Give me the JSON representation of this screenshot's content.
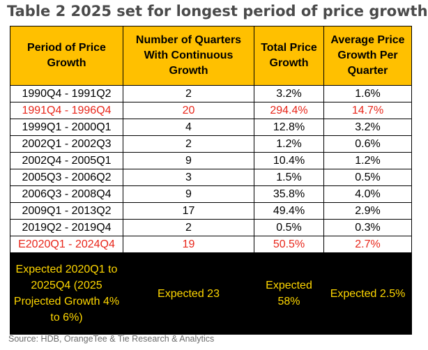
{
  "title": "Table 2 2025 set for longest period of price growth",
  "table": {
    "headers": [
      "Period of Price Growth",
      "Number of Quarters With Continuous Growth",
      "Total Price Growth",
      "Average Price Growth Per Quarter"
    ],
    "rows": [
      {
        "period": "1990Q4 - 1991Q2",
        "quarters": "2",
        "total": "3.2%",
        "average": "1.6%",
        "highlight": false
      },
      {
        "period": "1991Q4 - 1996Q4",
        "quarters": "20",
        "total": "294.4%",
        "average": "14.7%",
        "highlight": true
      },
      {
        "period": "1999Q1 - 2000Q1",
        "quarters": "4",
        "total": "12.8%",
        "average": "3.2%",
        "highlight": false
      },
      {
        "period": "2002Q1 - 2002Q3",
        "quarters": "2",
        "total": "1.2%",
        "average": "0.6%",
        "highlight": false
      },
      {
        "period": "2002Q4 - 2005Q1",
        "quarters": "9",
        "total": "10.4%",
        "average": "1.2%",
        "highlight": false
      },
      {
        "period": "2005Q3 - 2006Q2",
        "quarters": "3",
        "total": "1.5%",
        "average": "0.5%",
        "highlight": false
      },
      {
        "period": "2006Q3 - 2008Q4",
        "quarters": "9",
        "total": "35.8%",
        "average": "4.0%",
        "highlight": false
      },
      {
        "period": "2009Q1 - 2013Q2",
        "quarters": "17",
        "total": "49.4%",
        "average": "2.9%",
        "highlight": false
      },
      {
        "period": "2019Q2 - 2019Q4",
        "quarters": "2",
        "total": "0.5%",
        "average": "0.3%",
        "highlight": false
      },
      {
        "period": "E2020Q1 - 2024Q4",
        "quarters": "19",
        "total": "50.5%",
        "average": "2.7%",
        "highlight": true
      }
    ],
    "footer": {
      "period": "Expected 2020Q1 to 2025Q4 (2025 Projected Growth 4% to 6%)",
      "quarters": "Expected 23",
      "total": "Expected 58%",
      "average": "Expected 2.5%"
    }
  },
  "source": "Source: HDB, OrangeTee & Tie Research & Analytics",
  "colors": {
    "header_bg": "#ffc000",
    "highlight_text": "#e8261a",
    "footer_bg": "#000000",
    "footer_text": "#ffd700"
  }
}
